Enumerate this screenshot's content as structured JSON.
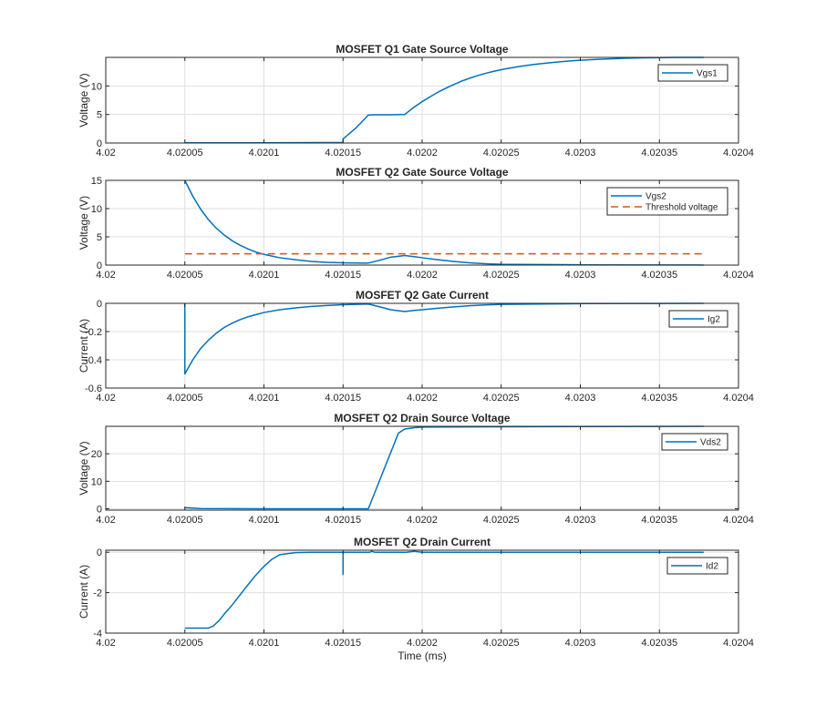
{
  "chart_data": [
    {
      "type": "line",
      "title": "MOSFET Q1 Gate Source Voltage",
      "xlabel": "",
      "ylabel": "Voltage (V)",
      "xlim": [
        4.02,
        4.0204
      ],
      "ylim": [
        0,
        15
      ],
      "xticks": [
        4.02,
        4.02005,
        4.0201,
        4.02015,
        4.0202,
        4.02025,
        4.0203,
        4.02035,
        4.0204
      ],
      "xtick_labels": [
        "4.02",
        "4.02005",
        "4.0201",
        "4.02015",
        "4.0202",
        "4.02025",
        "4.0203",
        "4.02035",
        "4.0204"
      ],
      "yticks": [
        0,
        5,
        10
      ],
      "ytick_labels": [
        "0",
        "5",
        "10"
      ],
      "grid": true,
      "legend_position": "top-right",
      "series": [
        {
          "name": "Vgs1",
          "color": "#0072BD",
          "dash": "",
          "x": [
            4.02005,
            4.0201,
            4.02015,
            4.02015,
            4.020158,
            4.020166,
            4.02017,
            4.02018,
            4.020189,
            4.020195,
            4.0202,
            4.020205,
            4.02021,
            4.020215,
            4.02022,
            4.020225,
            4.02023,
            4.020235,
            4.02024,
            4.020245,
            4.02025,
            4.020255,
            4.02026,
            4.02027,
            4.02028,
            4.02029,
            4.0203,
            4.02031,
            4.02032,
            4.02033,
            4.02034,
            4.02035,
            4.02036,
            4.020378
          ],
          "y": [
            0.05,
            0.05,
            0.1,
            0.7,
            2.6,
            4.9,
            4.95,
            4.95,
            5.0,
            6.3,
            7.25,
            8.1,
            8.9,
            9.6,
            10.25,
            10.85,
            11.35,
            11.8,
            12.2,
            12.55,
            12.85,
            13.1,
            13.35,
            13.75,
            14.05,
            14.3,
            14.5,
            14.65,
            14.77,
            14.86,
            14.93,
            14.97,
            14.99,
            15.0
          ]
        }
      ]
    },
    {
      "type": "line",
      "title": "MOSFET Q2 Gate Source Voltage",
      "xlabel": "",
      "ylabel": "Voltage (V)",
      "xlim": [
        4.02,
        4.0204
      ],
      "ylim": [
        0,
        15
      ],
      "xticks": [
        4.02,
        4.02005,
        4.0201,
        4.02015,
        4.0202,
        4.02025,
        4.0203,
        4.02035,
        4.0204
      ],
      "xtick_labels": [
        "4.02",
        "4.02005",
        "4.0201",
        "4.02015",
        "4.0202",
        "4.02025",
        "4.0203",
        "4.02035",
        "4.0204"
      ],
      "yticks": [
        0,
        5,
        10,
        15
      ],
      "ytick_labels": [
        "0",
        "5",
        "10",
        "15"
      ],
      "grid": true,
      "legend_position": "top-right",
      "series": [
        {
          "name": "Vgs2",
          "color": "#0072BD",
          "dash": "",
          "x": [
            4.02005,
            4.020055,
            4.02006,
            4.020065,
            4.02007,
            4.020075,
            4.02008,
            4.020085,
            4.02009,
            4.020095,
            4.0201,
            4.02011,
            4.02012,
            4.02013,
            4.02014,
            4.02015,
            4.020166,
            4.020175,
            4.02018,
            4.020189,
            4.020195,
            4.0202,
            4.02021,
            4.02022,
            4.02023,
            4.02024,
            4.02025,
            4.0203,
            4.02035,
            4.020378
          ],
          "y": [
            15.0,
            12.2,
            9.9,
            8.0,
            6.5,
            5.3,
            4.3,
            3.5,
            2.85,
            2.3,
            1.9,
            1.3,
            0.95,
            0.65,
            0.48,
            0.4,
            0.35,
            1.0,
            1.4,
            1.7,
            1.5,
            1.3,
            0.95,
            0.65,
            0.4,
            0.25,
            0.15,
            0.05,
            0.02,
            0.01
          ]
        },
        {
          "name": "Threshold voltage",
          "color": "#D95319",
          "dash": "8 5",
          "x": [
            4.02005,
            4.020378
          ],
          "y": [
            2.0,
            2.0
          ]
        }
      ]
    },
    {
      "type": "line",
      "title": "MOSFET Q2 Gate Current",
      "xlabel": "",
      "ylabel": "Current (A)",
      "xlim": [
        4.02,
        4.0204
      ],
      "ylim": [
        -0.6,
        0
      ],
      "xticks": [
        4.02,
        4.02005,
        4.0201,
        4.02015,
        4.0202,
        4.02025,
        4.0203,
        4.02035,
        4.0204
      ],
      "xtick_labels": [
        "4.02",
        "4.02005",
        "4.0201",
        "4.02015",
        "4.0202",
        "4.02025",
        "4.0203",
        "4.02035",
        "4.0204"
      ],
      "yticks": [
        -0.6,
        -0.4,
        -0.2,
        0
      ],
      "ytick_labels": [
        "-0.6",
        "-0.4",
        "-0.2",
        "0"
      ],
      "grid": true,
      "legend_position": "top-right",
      "series": [
        {
          "name": "Ig2",
          "color": "#0072BD",
          "dash": "",
          "x": [
            4.02005,
            4.02005,
            4.020055,
            4.02006,
            4.020065,
            4.02007,
            4.020075,
            4.02008,
            4.020085,
            4.02009,
            4.020095,
            4.0201,
            4.02011,
            4.02012,
            4.02013,
            4.02014,
            4.02015,
            4.020166,
            4.020175,
            4.02018,
            4.020189,
            4.020195,
            4.0202,
            4.02021,
            4.02022,
            4.02023,
            4.02024,
            4.02025,
            4.0203,
            4.02035,
            4.020378
          ],
          "y": [
            0.0,
            -0.5,
            -0.4,
            -0.32,
            -0.26,
            -0.21,
            -0.17,
            -0.14,
            -0.115,
            -0.095,
            -0.08,
            -0.065,
            -0.045,
            -0.032,
            -0.022,
            -0.015,
            -0.01,
            -0.005,
            -0.03,
            -0.045,
            -0.058,
            -0.05,
            -0.045,
            -0.035,
            -0.025,
            -0.017,
            -0.011,
            -0.007,
            -0.002,
            -0.001,
            0.0
          ]
        }
      ]
    },
    {
      "type": "line",
      "title": "MOSFET Q2 Drain Source Voltage",
      "xlabel": "",
      "ylabel": "Voltage (V)",
      "xlim": [
        4.02,
        4.0204
      ],
      "ylim": [
        -0.5,
        30
      ],
      "xticks": [
        4.02,
        4.02005,
        4.0201,
        4.02015,
        4.0202,
        4.02025,
        4.0203,
        4.02035,
        4.0204
      ],
      "xtick_labels": [
        "4.02",
        "4.02005",
        "4.0201",
        "4.02015",
        "4.0202",
        "4.02025",
        "4.0203",
        "4.02035",
        "4.0204"
      ],
      "yticks": [
        0,
        10,
        20
      ],
      "ytick_labels": [
        "0",
        "10",
        "20"
      ],
      "grid": true,
      "legend_position": "top-right",
      "series": [
        {
          "name": "Vds2",
          "color": "#0072BD",
          "dash": "",
          "x": [
            4.02005,
            4.02006,
            4.0201,
            4.02015,
            4.020166,
            4.020185,
            4.020189,
            4.020195,
            4.0202,
            4.02025,
            4.0203,
            4.02035,
            4.020378
          ],
          "y": [
            0.4,
            0.1,
            0.0,
            0.0,
            0.0,
            27.5,
            29.0,
            29.5,
            29.7,
            29.85,
            29.9,
            29.95,
            30.0
          ]
        }
      ]
    },
    {
      "type": "line",
      "title": "MOSFET Q2 Drain Current",
      "xlabel": "Time (ms)",
      "ylabel": "Current (A)",
      "xlim": [
        4.02,
        4.0204
      ],
      "ylim": [
        -4,
        0.1
      ],
      "xticks": [
        4.02,
        4.02005,
        4.0201,
        4.02015,
        4.0202,
        4.02025,
        4.0203,
        4.02035,
        4.0204
      ],
      "xtick_labels": [
        "4.02",
        "4.02005",
        "4.0201",
        "4.02015",
        "4.0202",
        "4.02025",
        "4.0203",
        "4.02035",
        "4.0204"
      ],
      "yticks": [
        -4,
        -2,
        0
      ],
      "ytick_labels": [
        "-4",
        "-2",
        "0"
      ],
      "grid": true,
      "legend_position": "top-right",
      "series": [
        {
          "name": "Id2",
          "color": "#0072BD",
          "dash": "",
          "x": [
            4.02005,
            4.020065,
            4.020068,
            4.020072,
            4.020075,
            4.02008,
            4.020085,
            4.02009,
            4.020095,
            4.0201,
            4.020105,
            4.02011,
            4.02012,
            4.02013,
            4.02014,
            4.02015,
            4.02015,
            4.02015,
            4.020151,
            4.02016,
            4.020166,
            4.020167,
            4.020168,
            4.02017,
            4.02018,
            4.02019,
            4.020195,
            4.0202,
            4.02025,
            4.0203,
            4.02035,
            4.020378
          ],
          "y": [
            -3.75,
            -3.75,
            -3.65,
            -3.35,
            -3.05,
            -2.6,
            -2.1,
            -1.6,
            -1.12,
            -0.7,
            -0.35,
            -0.12,
            -0.02,
            0.0,
            0.0,
            0.0,
            -1.1,
            0.0,
            0.0,
            0.0,
            0.0,
            0.0,
            0.05,
            0.0,
            0.0,
            0.0,
            0.05,
            0.0,
            0.0,
            0.0,
            0.0,
            0.0
          ]
        }
      ]
    }
  ]
}
